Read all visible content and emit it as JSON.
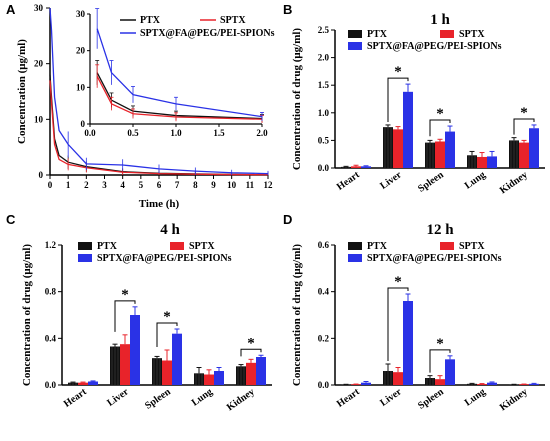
{
  "colors": {
    "PTX": "#111111",
    "SPTX": "#e8232a",
    "SPTX@FA@PEG/PEI-SPIONs": "#2a32e6"
  },
  "chart_data": [
    {
      "panel": "A",
      "type": "line",
      "xlabel": "Time (h)",
      "ylabel": "Concentration (μg/ml)",
      "xlim": [
        0,
        12
      ],
      "ylim": [
        0,
        30
      ],
      "xticks": [
        "0",
        "1",
        "2",
        "3",
        "4",
        "5",
        "6",
        "7",
        "8",
        "9",
        "10",
        "11",
        "12"
      ],
      "yticks": [
        "0",
        "10",
        "20",
        "30"
      ],
      "legend_position": "inside inset, top-left",
      "series": [
        {
          "name": "PTX",
          "x": [
            0.0833,
            0.25,
            0.5,
            1,
            2,
            4,
            6,
            8,
            10,
            12
          ],
          "y": [
            14.0,
            6.5,
            3.5,
            2.3,
            1.5,
            0.6,
            0.3,
            0.2,
            0.1,
            0.05
          ]
        },
        {
          "name": "SPTX",
          "x": [
            0.0833,
            0.25,
            0.5,
            1,
            2,
            4,
            6,
            8,
            10,
            12
          ],
          "y": [
            13.0,
            5.5,
            2.8,
            1.9,
            1.3,
            0.5,
            0.25,
            0.15,
            0.08,
            0.04
          ]
        },
        {
          "name": "SPTX@FA@PEG/PEI-SPIONs",
          "x": [
            0.0833,
            0.25,
            0.5,
            1,
            2,
            4,
            6,
            8,
            10,
            12
          ],
          "y": [
            26.0,
            14.0,
            8.0,
            5.5,
            2.0,
            1.8,
            1.1,
            0.7,
            0.4,
            0.25
          ]
        }
      ],
      "inset": {
        "xlim": [
          0,
          2
        ],
        "ylim": [
          0,
          30
        ],
        "xticks": [
          "0.0",
          "0.5",
          "1.0",
          "1.5",
          "2.0"
        ],
        "yticks": [
          "0",
          "10",
          "20",
          "30"
        ]
      }
    },
    {
      "panel": "B",
      "type": "bar",
      "title": "1 h",
      "ylabel": "Concentration of drug (μg/ml)",
      "ylim": [
        0,
        2.5
      ],
      "yticks": [
        "0.0",
        "0.5",
        "1.0",
        "1.5",
        "2.0",
        "2.5"
      ],
      "categories": [
        "Heart",
        "Liver",
        "Spleen",
        "Lung",
        "Kidney"
      ],
      "series": [
        {
          "name": "PTX",
          "values": [
            0.02,
            0.74,
            0.46,
            0.23,
            0.5
          ],
          "err": [
            0.01,
            0.04,
            0.04,
            0.07,
            0.05
          ]
        },
        {
          "name": "SPTX",
          "values": [
            0.03,
            0.7,
            0.48,
            0.2,
            0.46
          ],
          "err": [
            0.02,
            0.05,
            0.04,
            0.08,
            0.04
          ]
        },
        {
          "name": "SPTX@FA@PEG/PEI-SPIONs",
          "values": [
            0.03,
            1.38,
            0.66,
            0.21,
            0.72
          ],
          "err": [
            0.01,
            0.14,
            0.1,
            0.09,
            0.06
          ]
        }
      ],
      "significance": [
        {
          "category": "Liver",
          "label": "*"
        },
        {
          "category": "Spleen",
          "label": "*"
        },
        {
          "category": "Kidney",
          "label": "*"
        }
      ]
    },
    {
      "panel": "C",
      "type": "bar",
      "title": "4 h",
      "ylabel": "Concentration of drug (μg/ml)",
      "ylim": [
        0,
        1.2
      ],
      "yticks": [
        "0.0",
        "0.4",
        "0.8",
        "1.2"
      ],
      "categories": [
        "Heart",
        "Liver",
        "Spleen",
        "Lung",
        "Kidney"
      ],
      "series": [
        {
          "name": "PTX",
          "values": [
            0.02,
            0.33,
            0.23,
            0.1,
            0.16
          ],
          "err": [
            0.005,
            0.02,
            0.015,
            0.05,
            0.015
          ]
        },
        {
          "name": "SPTX",
          "values": [
            0.02,
            0.35,
            0.21,
            0.09,
            0.19
          ],
          "err": [
            0.005,
            0.08,
            0.09,
            0.04,
            0.03
          ]
        },
        {
          "name": "SPTX@FA@PEG/PEI-SPIONs",
          "values": [
            0.03,
            0.6,
            0.44,
            0.12,
            0.24
          ],
          "err": [
            0.005,
            0.07,
            0.04,
            0.03,
            0.015
          ]
        }
      ],
      "significance": [
        {
          "category": "Liver",
          "label": "*"
        },
        {
          "category": "Spleen",
          "label": "*"
        },
        {
          "category": "Kidney",
          "label": "*"
        }
      ]
    },
    {
      "panel": "D",
      "type": "bar",
      "title": "12 h",
      "ylabel": "Concentration of drug (μg/ml)",
      "ylim": [
        0,
        0.6
      ],
      "yticks": [
        "0.0",
        "0.2",
        "0.4",
        "0.6"
      ],
      "categories": [
        "Heart",
        "Liver",
        "Spleen",
        "Lung",
        "Kidney"
      ],
      "series": [
        {
          "name": "PTX",
          "values": [
            0.002,
            0.06,
            0.03,
            0.005,
            0.002
          ],
          "err": [
            0.001,
            0.03,
            0.01,
            0.002,
            0.001
          ]
        },
        {
          "name": "SPTX",
          "values": [
            0.003,
            0.055,
            0.025,
            0.004,
            0.003
          ],
          "err": [
            0.001,
            0.02,
            0.015,
            0.002,
            0.001
          ]
        },
        {
          "name": "SPTX@FA@PEG/PEI-SPIONs",
          "values": [
            0.01,
            0.36,
            0.11,
            0.01,
            0.005
          ],
          "err": [
            0.005,
            0.03,
            0.015,
            0.003,
            0.002
          ]
        }
      ],
      "significance": [
        {
          "category": "Liver",
          "label": "*"
        },
        {
          "category": "Spleen",
          "label": "*"
        }
      ]
    }
  ]
}
